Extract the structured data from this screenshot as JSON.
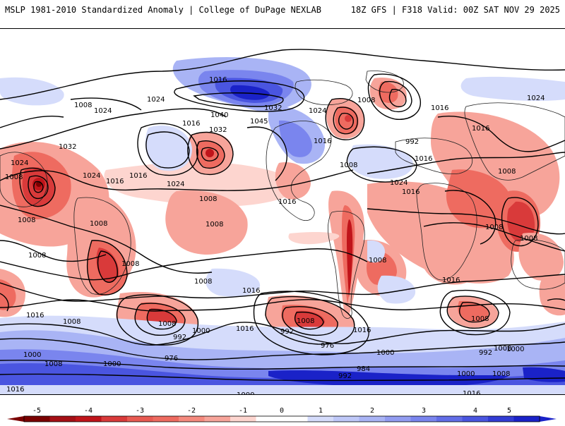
{
  "header": {
    "title": "MSLP 1981-2010 Standardized Anomaly | College of DuPage NEXLAB",
    "run_info": "18Z GFS | F318 Valid: 00Z SAT NOV 29 2025"
  },
  "colors": {
    "neg_strong": "#7a0000",
    "neg_5": "#c0141a",
    "neg_4": "#d93a3a",
    "neg_3": "#ee6b60",
    "neg_2": "#f7a49a",
    "neg_1": "#fdd5cf",
    "pos_1": "#d5dcfb",
    "pos_2": "#a9b4f5",
    "pos_3": "#7a85ee",
    "pos_4": "#4a55e0",
    "pos_5": "#1a22c8"
  },
  "isobar_labels": [
    "1016",
    "1008",
    "1024",
    "1024",
    "1016",
    "1040",
    "1045",
    "1032",
    "1032",
    "1024",
    "1016",
    "1008",
    "1016",
    "1016",
    "1024",
    "1024",
    "1008",
    "1008",
    "992",
    "1016",
    "1016",
    "1024",
    "1008",
    "1016",
    "1008",
    "1032",
    "1024",
    "1016",
    "1024",
    "1008",
    "1016",
    "1008",
    "1008",
    "1008",
    "1008",
    "1008",
    "1008",
    "1008",
    "1008",
    "1016",
    "1016",
    "1008",
    "1016",
    "1016",
    "1008",
    "1008",
    "1008",
    "992",
    "1000",
    "1016",
    "976",
    "992",
    "1000",
    "1008",
    "976",
    "1000",
    "992",
    "984",
    "992",
    "1000",
    "1008",
    "1008",
    "1000",
    "1016",
    "1016",
    "1000",
    "1000",
    "1008",
    "1016",
    "1024",
    "1024"
  ],
  "legend": {
    "ticks": [
      "-5",
      "-4",
      "-3",
      "-2",
      "-1",
      "0",
      "1",
      "2",
      "3",
      "4",
      "5"
    ]
  }
}
